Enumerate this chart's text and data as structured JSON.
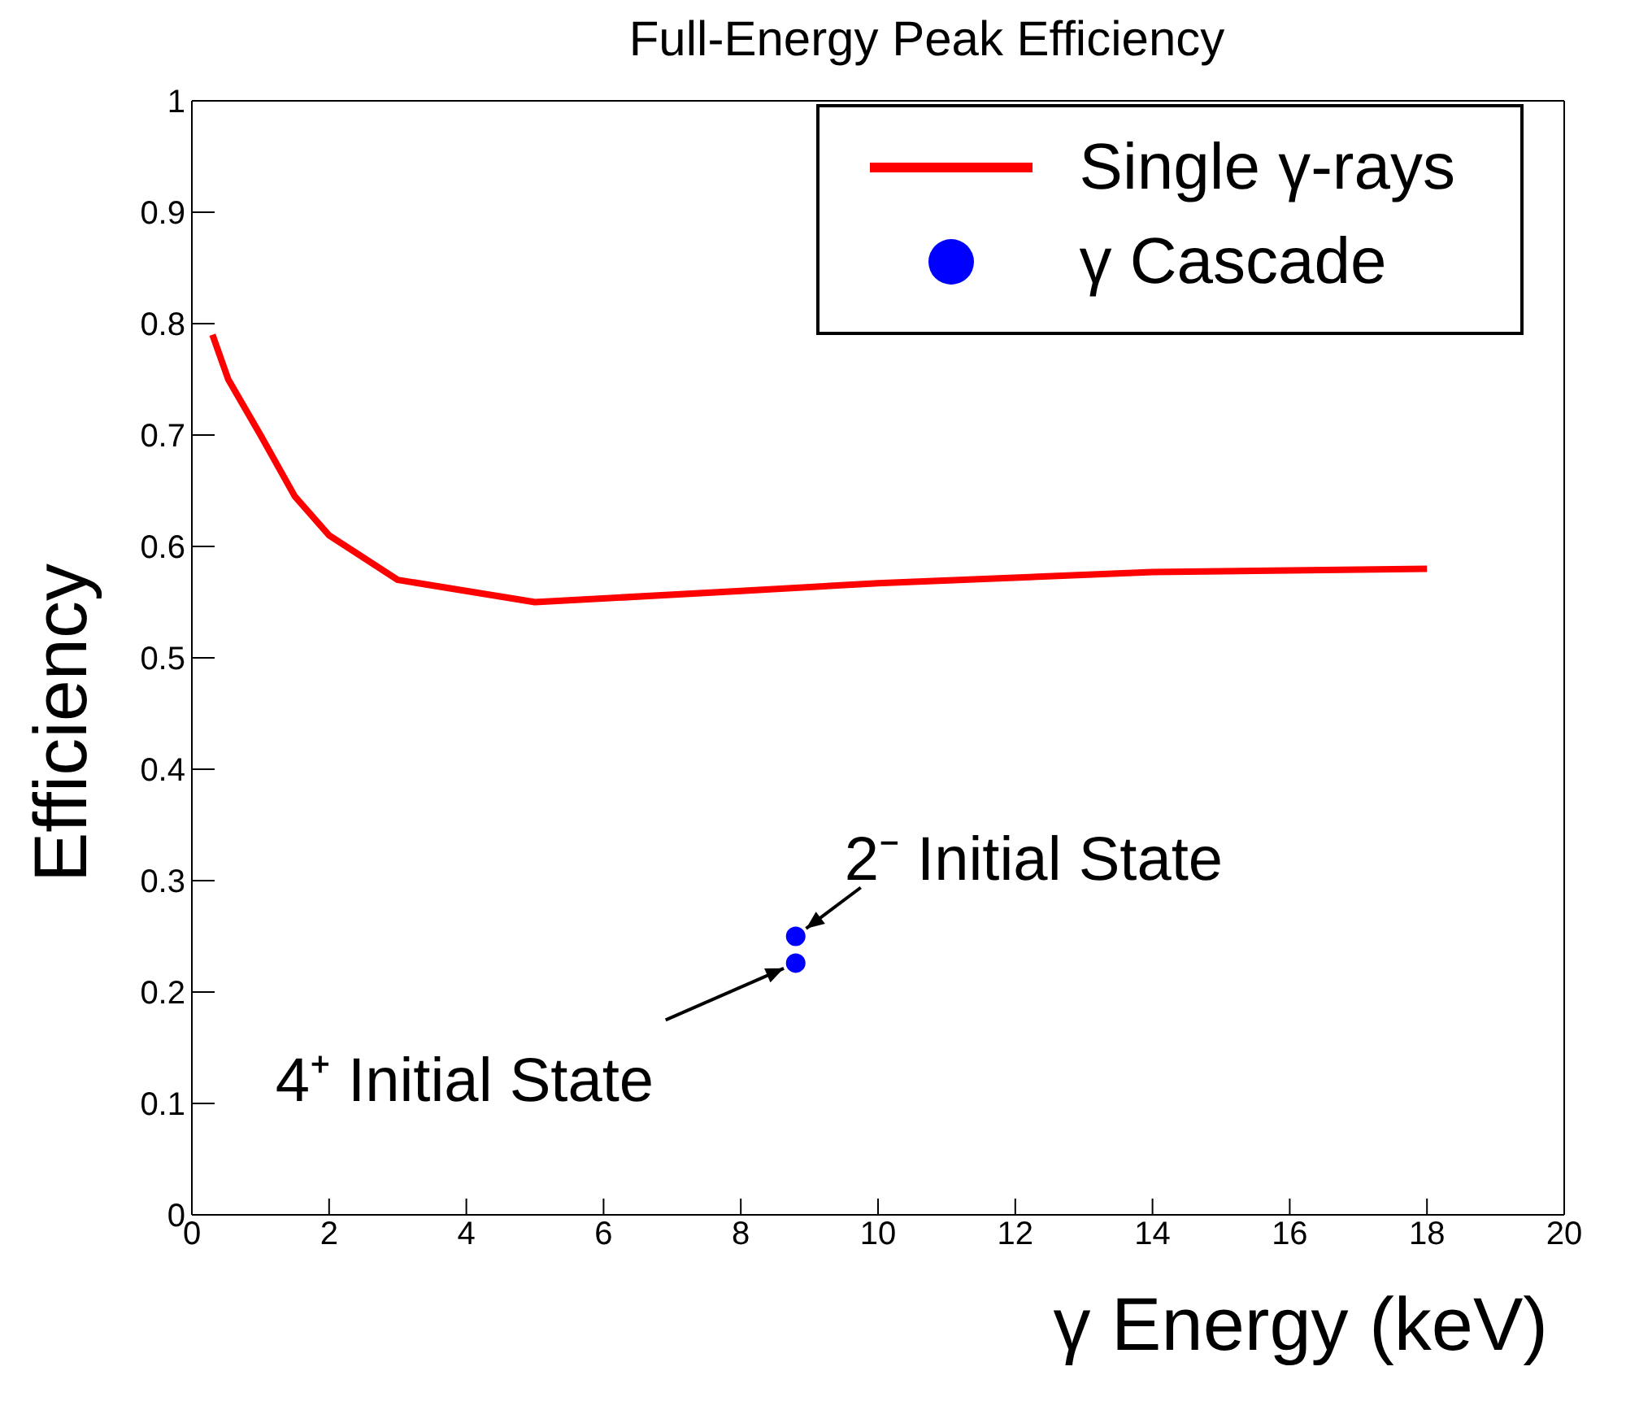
{
  "chart_data": {
    "type": "line",
    "title": "Full-Energy Peak Efficiency",
    "xlabel": "γ Energy (keV)",
    "ylabel": "Efficiency",
    "xlim": [
      0,
      20
    ],
    "xticks": [
      0,
      2,
      4,
      6,
      8,
      10,
      12,
      14,
      16,
      18,
      20
    ],
    "ylim": [
      0,
      1
    ],
    "yticks": [
      0,
      0.1,
      0.2,
      0.3,
      0.4,
      0.5,
      0.6,
      0.7,
      0.8,
      0.9,
      1
    ],
    "grid": false,
    "legend": "top right",
    "series": [
      {
        "name": "Single γ-rays",
        "color": "#ff0000",
        "marker": "none",
        "x": [
          0.3,
          0.53,
          1.0,
          1.5,
          2.0,
          3.0,
          5.0,
          8.0,
          10.0,
          14.0,
          18.0
        ],
        "values": [
          0.79,
          0.75,
          0.7,
          0.645,
          0.61,
          0.57,
          0.55,
          0.56,
          0.567,
          0.577,
          0.58
        ]
      },
      {
        "name": "γ Cascade",
        "type": "scatter",
        "color": "#0000ff",
        "marker": "circle",
        "x": [
          8.8,
          8.8
        ],
        "values": [
          0.25,
          0.226
        ]
      }
    ],
    "annotations": [
      {
        "text": "2⁻ Initial State",
        "x": 8.8,
        "y": 0.25
      },
      {
        "text": "4⁺ Initial State",
        "x": 8.8,
        "y": 0.226
      }
    ]
  }
}
